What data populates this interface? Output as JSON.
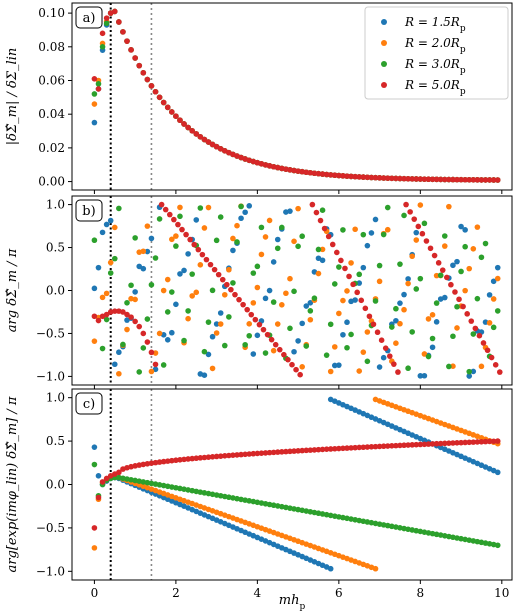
{
  "chart_data": {
    "type": "scatter",
    "xlabel": "mh_p",
    "xlabel_parts": {
      "main": "mh",
      "sub": "p"
    },
    "xlim": [
      -0.55,
      10.25
    ],
    "xticks": [
      0,
      2,
      4,
      6,
      8,
      10
    ],
    "vlines": [
      {
        "x": 0.4,
        "style": "dotted",
        "color": "#000000"
      },
      {
        "x": 1.4,
        "style": "dotted",
        "color": "#888888"
      }
    ],
    "dx": 0.1,
    "legend": {
      "placement": "top-right",
      "entries": [
        {
          "name": "R = 1.5R_p",
          "label_main": "R = 1.5R",
          "label_sub": "p",
          "color": "#1f77b4"
        },
        {
          "name": "R = 2.0R_p",
          "label_main": "R = 2.0R",
          "label_sub": "p",
          "color": "#ff7f0e"
        },
        {
          "name": "R = 3.0R_p",
          "label_main": "R = 3.0R",
          "label_sub": "p",
          "color": "#2ca02c"
        },
        {
          "name": "R = 5.0R_p",
          "label_main": "R = 5.0R",
          "label_sub": "p",
          "color": "#d62728"
        }
      ]
    },
    "panels": [
      {
        "tag": "a)",
        "ylabel": "|δΣ̂_m| / δΣ_lin",
        "ylim": [
          -0.005,
          0.106
        ],
        "yticks": [
          0.0,
          0.02,
          0.04,
          0.06,
          0.08,
          0.1
        ],
        "ytick_labels": [
          "0.00",
          "0.02",
          "0.04",
          "0.06",
          "0.08",
          "0.10"
        ],
        "series": [
          {
            "color": "#1f77b4",
            "values": [
              0.035,
              0.055,
              0.078,
              0.093,
              0.1,
              0.101
            ]
          },
          {
            "color": "#ff7f0e",
            "values": [
              0.046,
              0.06,
              0.082,
              0.095,
              0.1,
              0.101
            ]
          },
          {
            "color": "#2ca02c",
            "values": [
              0.052,
              0.058,
              0.08,
              0.094,
              0.1,
              0.101
            ]
          },
          {
            "color": "#d62728",
            "values": [
              0.061,
              0.055,
              0.088,
              0.097,
              0.1,
              0.101
            ]
          }
        ],
        "envelope": {
          "peak_x": 0.5,
          "peak_value": 0.101,
          "decay_scale": 1.55,
          "tail_value": 0.0007,
          "applies_to": "all series beyond x = 0.5"
        }
      },
      {
        "tag": "b)",
        "ylabel": "arg δΣ̂_m / π",
        "ylim": [
          -1.1,
          1.1
        ],
        "yticks": [
          -1.0,
          -0.5,
          0.0,
          0.5,
          1.0
        ],
        "ytick_labels": [
          "−1.0",
          "−0.5",
          "0.0",
          "0.5",
          "1.0"
        ],
        "series": [
          {
            "color": "#1f77b4",
            "scattered": true,
            "slope": 1.83,
            "phase": 0.2
          },
          {
            "color": "#ff7f0e",
            "scattered": true,
            "slope": 2.71,
            "phase": -0.7
          },
          {
            "color": "#2ca02c",
            "scattered": true,
            "slope": 3.97,
            "phase": 0.55
          },
          {
            "color": "#d62728",
            "scattered": false,
            "initial_values": [
              -0.3,
              -0.35,
              -0.3,
              -0.28,
              -0.25,
              -0.24,
              -0.24,
              -0.25,
              -0.28,
              -0.31,
              -0.36,
              -0.42,
              -0.5,
              -0.6,
              -0.72,
              -0.86
            ],
            "segments": [
              {
                "x_start": 1.65,
                "x_end": 5.05,
                "y_start": 1.0,
                "y_end": -0.98
              },
              {
                "x_start": 5.35,
                "x_end": 7.45,
                "y_start": 1.0,
                "y_end": -0.95
              },
              {
                "x_start": 7.65,
                "x_end": 9.95,
                "y_start": 1.0,
                "y_end": -0.95
              }
            ]
          }
        ]
      },
      {
        "tag": "c)",
        "ylabel": "arg[exp(imφ_lin) δΣ̂_m] / π",
        "ylim": [
          -1.1,
          1.1
        ],
        "yticks": [
          -1.0,
          -0.5,
          0.0,
          0.5,
          1.0
        ],
        "ytick_labels": [
          "−1.0",
          "−0.5",
          "0.0",
          "0.5",
          "1.0"
        ],
        "series": [
          {
            "color": "#1f77b4",
            "initial_values": [
              0.43,
              0.1,
              0.0,
              0.04,
              0.07,
              0.08
            ],
            "segments": [
              {
                "x_start": 0.6,
                "x_end": 5.8,
                "y_start": 0.07,
                "y_end": -0.97
              },
              {
                "x_start": 5.8,
                "x_end": 9.9,
                "y_start": 0.98,
                "y_end": 0.14
              }
            ]
          },
          {
            "color": "#ff7f0e",
            "initial_values": [
              -0.73,
              -0.17,
              0.02,
              0.06,
              0.08,
              0.09
            ],
            "segments": [
              {
                "x_start": 0.6,
                "x_end": 6.9,
                "y_start": 0.08,
                "y_end": -0.97
              },
              {
                "x_start": 6.9,
                "x_end": 9.9,
                "y_start": 0.98,
                "y_end": 0.47
              }
            ]
          },
          {
            "color": "#2ca02c",
            "initial_values": [
              0.23,
              -0.13,
              0.0,
              0.05,
              0.07,
              0.08
            ],
            "segments": [
              {
                "x_start": 0.6,
                "x_end": 9.9,
                "y_start": 0.08,
                "y_end": -0.7
              }
            ]
          },
          {
            "color": "#d62728",
            "initial_values": [
              -0.5,
              -0.15,
              0.03,
              0.07,
              0.1,
              0.12
            ],
            "curve": {
              "type": "sqrt_rise",
              "x_start": 0.6,
              "x_end": 9.9,
              "y_start": 0.14,
              "y_end": 0.5
            }
          }
        ]
      }
    ]
  }
}
